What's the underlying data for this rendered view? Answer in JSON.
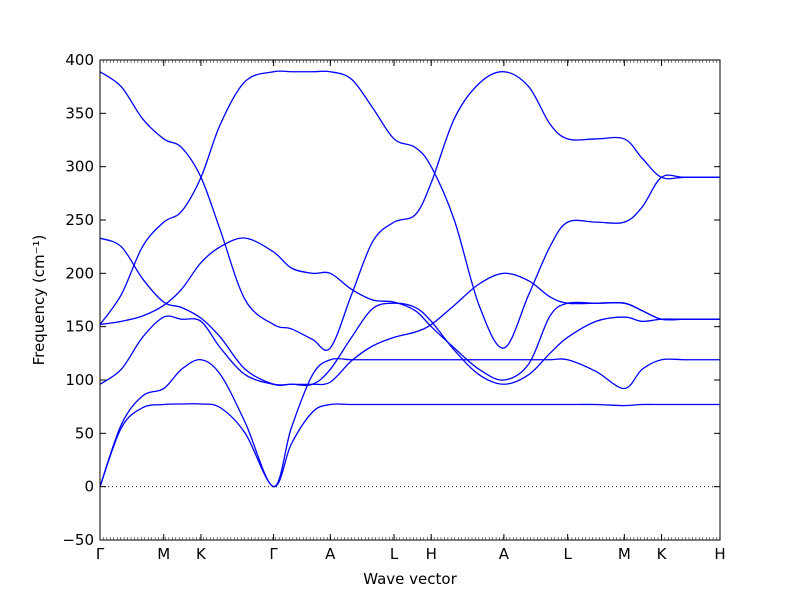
{
  "chart_data": {
    "type": "line",
    "title": "",
    "xlabel": "Wave vector",
    "ylabel": "Frequency (cm⁻¹)",
    "ylim": [
      -50,
      400
    ],
    "yticks": [
      -50,
      0,
      50,
      100,
      150,
      200,
      250,
      300,
      350,
      400
    ],
    "xlim": [
      0,
      17.5
    ],
    "xticks": [
      {
        "label": "Γ",
        "x": 0
      },
      {
        "label": "M",
        "x": 1.8
      },
      {
        "label": "K",
        "x": 2.85
      },
      {
        "label": "Γ",
        "x": 4.9
      },
      {
        "label": "A",
        "x": 6.5
      },
      {
        "label": "L",
        "x": 8.3
      },
      {
        "label": "H",
        "x": 9.35
      },
      {
        "label": "A",
        "x": 11.4
      },
      {
        "label": "L",
        "x": 13.2
      },
      {
        "label": "M",
        "x": 14.8
      },
      {
        "label": "K",
        "x": 15.85
      },
      {
        "label": "H",
        "x": 17.5
      }
    ],
    "zero_line": true,
    "line_color": "#0000ff",
    "series": [
      {
        "x": [
          0,
          0.6,
          1.2,
          1.8,
          2.3,
          2.85,
          3.4,
          4.1,
          4.9,
          5.4,
          6.0,
          6.5,
          7.1,
          7.7,
          8.3,
          8.9,
          9.35,
          10.0,
          10.7,
          11.4,
          12.1,
          12.7,
          13.2,
          14.0,
          14.8,
          15.3,
          15.85,
          16.5,
          17.5
        ],
        "y": [
          0,
          55,
          74,
          77,
          77.5,
          77.5,
          74,
          50,
          0,
          40,
          70,
          77,
          77,
          77,
          77,
          77,
          77,
          77,
          77,
          77,
          77,
          77,
          77,
          77,
          76,
          77,
          77,
          77,
          77
        ]
      },
      {
        "x": [
          0,
          0.6,
          1.2,
          1.8,
          2.3,
          2.85,
          3.4,
          4.1,
          4.9,
          5.4,
          6.0,
          6.5,
          7.1,
          7.7,
          8.3,
          8.9,
          9.35,
          10.0,
          10.7,
          11.4,
          12.1,
          12.7,
          13.2,
          14.0,
          14.8,
          15.3,
          15.85,
          16.5,
          17.5
        ],
        "y": [
          0,
          58,
          85,
          92,
          110,
          119,
          105,
          60,
          0,
          55,
          105,
          119,
          119,
          119,
          119,
          119,
          119,
          119,
          119,
          119,
          119,
          119,
          119,
          108,
          92,
          110,
          119,
          119,
          119
        ]
      },
      {
        "x": [
          0,
          0.6,
          1.2,
          1.8,
          2.3,
          2.85,
          3.4,
          4.1,
          4.9,
          5.4,
          6.0,
          6.5,
          7.1,
          7.7,
          8.3,
          8.9,
          9.35,
          10.0,
          10.7,
          11.4,
          12.1,
          12.7,
          13.2,
          14.0,
          14.8,
          15.3,
          15.85,
          16.5,
          17.5
        ],
        "y": [
          96,
          110,
          140,
          159,
          157,
          155,
          130,
          105,
          96,
          96,
          96,
          98,
          118,
          132,
          140,
          145,
          152,
          170,
          190,
          200,
          193,
          178,
          172,
          172,
          172,
          165,
          157,
          157,
          157
        ]
      },
      {
        "x": [
          0,
          0.6,
          1.2,
          1.8,
          2.3,
          2.85,
          3.4,
          4.1,
          4.9,
          5.4,
          6.0,
          6.5,
          7.1,
          7.7,
          8.3,
          8.9,
          9.35,
          10.0,
          10.7,
          11.4,
          12.1,
          12.7,
          13.2,
          14.0,
          14.8,
          15.3,
          15.85,
          16.5,
          17.5
        ],
        "y": [
          233,
          225,
          195,
          173,
          168,
          158,
          140,
          110,
          96,
          96,
          96,
          110,
          140,
          167,
          172,
          168,
          155,
          128,
          105,
          96,
          105,
          125,
          140,
          155,
          159,
          155,
          157,
          157,
          157
        ]
      },
      {
        "x": [
          0,
          0.6,
          1.2,
          1.8,
          2.3,
          2.85,
          3.4,
          4.1,
          4.9,
          5.4,
          6.0,
          6.5,
          7.1,
          7.7,
          8.3,
          8.9,
          9.35,
          10.0,
          10.7,
          11.4,
          12.1,
          12.7,
          13.2,
          14.0,
          14.8,
          15.3,
          15.85,
          16.5,
          17.5
        ],
        "y": [
          152,
          180,
          225,
          248,
          258,
          290,
          340,
          380,
          389,
          389,
          389,
          389,
          382,
          355,
          326,
          318,
          300,
          250,
          170,
          130,
          180,
          225,
          248,
          248,
          248,
          262,
          290,
          290,
          290
        ]
      },
      {
        "x": [
          0,
          0.6,
          1.2,
          1.8,
          2.3,
          2.85,
          3.4,
          4.1,
          4.9,
          5.4,
          6.0,
          6.5,
          7.1,
          7.7,
          8.3,
          8.9,
          9.35,
          10.0,
          10.7,
          11.4,
          12.1,
          12.7,
          13.2,
          14.0,
          14.8,
          15.3,
          15.85,
          16.5,
          17.5
        ],
        "y": [
          389,
          375,
          345,
          326,
          318,
          290,
          240,
          175,
          152,
          148,
          138,
          130,
          180,
          230,
          248,
          255,
          285,
          345,
          378,
          389,
          375,
          340,
          326,
          326,
          326,
          308,
          290,
          290,
          290
        ]
      },
      {
        "x": [
          0,
          0.6,
          1.2,
          1.8,
          2.3,
          2.85,
          3.4,
          4.1,
          4.9,
          5.4,
          6.0,
          6.5,
          7.1,
          7.7,
          8.3,
          8.9,
          9.35,
          10.0,
          10.7,
          11.4,
          12.1,
          12.7,
          13.2,
          14.0,
          14.8,
          15.3,
          15.85,
          16.5,
          17.5
        ],
        "y": [
          152,
          155,
          160,
          170,
          185,
          210,
          225,
          233,
          220,
          205,
          200,
          200,
          185,
          175,
          173,
          165,
          150,
          130,
          110,
          100,
          115,
          160,
          172,
          172,
          172,
          165,
          157,
          157,
          157
        ]
      }
    ]
  }
}
